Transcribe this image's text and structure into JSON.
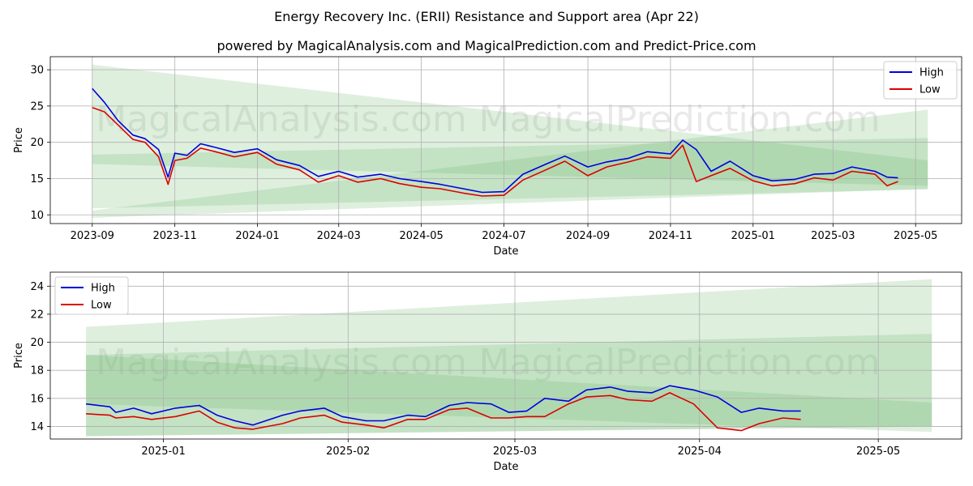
{
  "title": "Energy Recovery Inc. (ERII) Resistance and Support area (Apr 22)",
  "subtitle": "powered by MagicalAnalysis.com and MagicalPrediction.com and Predict-Price.com",
  "watermarks": [
    "MagicalAnalysis.com",
    "MagicalPrediction.com"
  ],
  "colors": {
    "high": "#0000dd",
    "low": "#dd0000",
    "band": "#6ab86a",
    "grid": "#b0b0b0"
  },
  "chart_data": [
    {
      "type": "line",
      "xlabel": "Date",
      "ylabel": "Price",
      "xlim": [
        "2023-08-01",
        "2025-06-04"
      ],
      "ylim": [
        8.8,
        31.8
      ],
      "grid": true,
      "legend": "top-right",
      "xticks": [
        {
          "date": "2023-09-01",
          "label": "2023-09"
        },
        {
          "date": "2023-11-01",
          "label": "2023-11"
        },
        {
          "date": "2024-01-01",
          "label": "2024-01"
        },
        {
          "date": "2024-03-01",
          "label": "2024-03"
        },
        {
          "date": "2024-05-01",
          "label": "2024-05"
        },
        {
          "date": "2024-07-01",
          "label": "2024-07"
        },
        {
          "date": "2024-09-01",
          "label": "2024-09"
        },
        {
          "date": "2024-11-01",
          "label": "2024-11"
        },
        {
          "date": "2025-01-01",
          "label": "2025-01"
        },
        {
          "date": "2025-03-01",
          "label": "2025-03"
        },
        {
          "date": "2025-05-01",
          "label": "2025-05"
        }
      ],
      "yticks": [
        10,
        15,
        20,
        25,
        30
      ],
      "bands": [
        {
          "x": [
            "2023-09-01",
            "2025-05-10"
          ],
          "top": [
            30.7,
            17.5
          ],
          "bottom": [
            17.0,
            14.0
          ]
        },
        {
          "x": [
            "2023-09-01",
            "2025-05-10"
          ],
          "top": [
            18.3,
            20.6
          ],
          "bottom": [
            10.9,
            13.5
          ]
        },
        {
          "x": [
            "2023-09-01",
            "2025-05-10"
          ],
          "top": [
            10.6,
            24.5
          ],
          "bottom": [
            9.6,
            13.6
          ]
        }
      ],
      "series": [
        {
          "name": "High",
          "x": [
            "2023-09-01",
            "2023-09-10",
            "2023-09-20",
            "2023-10-01",
            "2023-10-10",
            "2023-10-20",
            "2023-10-27",
            "2023-11-01",
            "2023-11-10",
            "2023-11-20",
            "2023-12-01",
            "2023-12-15",
            "2024-01-01",
            "2024-01-15",
            "2024-02-01",
            "2024-02-15",
            "2024-03-01",
            "2024-03-15",
            "2024-04-01",
            "2024-04-15",
            "2024-05-01",
            "2024-05-15",
            "2024-06-01",
            "2024-06-15",
            "2024-07-01",
            "2024-07-15",
            "2024-08-01",
            "2024-08-15",
            "2024-09-01",
            "2024-09-15",
            "2024-10-01",
            "2024-10-15",
            "2024-11-01",
            "2024-11-10",
            "2024-11-20",
            "2024-12-01",
            "2024-12-15",
            "2025-01-01",
            "2025-01-15",
            "2025-02-01",
            "2025-02-15",
            "2025-03-01",
            "2025-03-15",
            "2025-04-01",
            "2025-04-10",
            "2025-04-18"
          ],
          "values": [
            27.4,
            25.5,
            23.0,
            21.0,
            20.5,
            19.0,
            15.2,
            18.5,
            18.2,
            19.8,
            19.3,
            18.6,
            19.1,
            17.6,
            16.8,
            15.3,
            16.0,
            15.2,
            15.6,
            15.0,
            14.6,
            14.2,
            13.6,
            13.1,
            13.2,
            15.6,
            17.0,
            18.1,
            16.6,
            17.3,
            17.8,
            18.7,
            18.4,
            20.3,
            19.0,
            16.0,
            17.4,
            15.4,
            14.7,
            14.9,
            15.6,
            15.7,
            16.6,
            16.0,
            15.2,
            15.1
          ]
        },
        {
          "name": "Low",
          "x": [
            "2023-09-01",
            "2023-09-10",
            "2023-09-20",
            "2023-10-01",
            "2023-10-10",
            "2023-10-20",
            "2023-10-27",
            "2023-11-01",
            "2023-11-10",
            "2023-11-20",
            "2023-12-01",
            "2023-12-15",
            "2024-01-01",
            "2024-01-15",
            "2024-02-01",
            "2024-02-15",
            "2024-03-01",
            "2024-03-15",
            "2024-04-01",
            "2024-04-15",
            "2024-05-01",
            "2024-05-15",
            "2024-06-01",
            "2024-06-15",
            "2024-07-01",
            "2024-07-15",
            "2024-08-01",
            "2024-08-15",
            "2024-09-01",
            "2024-09-15",
            "2024-10-01",
            "2024-10-15",
            "2024-11-01",
            "2024-11-10",
            "2024-11-20",
            "2024-12-01",
            "2024-12-15",
            "2025-01-01",
            "2025-01-15",
            "2025-02-01",
            "2025-02-15",
            "2025-03-01",
            "2025-03-15",
            "2025-04-01",
            "2025-04-10",
            "2025-04-18"
          ],
          "values": [
            24.8,
            24.2,
            22.4,
            20.4,
            20.0,
            18.0,
            14.2,
            17.5,
            17.8,
            19.2,
            18.7,
            18.0,
            18.6,
            17.0,
            16.2,
            14.5,
            15.4,
            14.5,
            15.0,
            14.3,
            13.8,
            13.6,
            13.0,
            12.6,
            12.7,
            14.8,
            16.2,
            17.4,
            15.4,
            16.6,
            17.3,
            18.0,
            17.8,
            19.6,
            14.6,
            15.4,
            16.4,
            14.7,
            14.0,
            14.3,
            15.1,
            14.8,
            16.0,
            15.6,
            14.0,
            14.6
          ]
        }
      ]
    },
    {
      "type": "line",
      "xlabel": "Date",
      "ylabel": "Price",
      "xlim": [
        "2024-12-13",
        "2025-05-15"
      ],
      "ylim": [
        13.1,
        25.0
      ],
      "grid": true,
      "legend": "top-left",
      "xticks": [
        {
          "date": "2025-01-01",
          "label": "2025-01"
        },
        {
          "date": "2025-02-01",
          "label": "2025-02"
        },
        {
          "date": "2025-03-01",
          "label": "2025-03"
        },
        {
          "date": "2025-04-01",
          "label": "2025-04"
        },
        {
          "date": "2025-05-01",
          "label": "2025-05"
        }
      ],
      "yticks": [
        14,
        16,
        18,
        20,
        22,
        24
      ],
      "bands": [
        {
          "x": [
            "2024-12-19",
            "2025-05-10"
          ],
          "top": [
            21.1,
            24.5
          ],
          "bottom": [
            15.6,
            13.6
          ]
        },
        {
          "x": [
            "2024-12-19",
            "2025-05-10"
          ],
          "top": [
            19.1,
            20.6
          ],
          "bottom": [
            13.3,
            14.0
          ]
        },
        {
          "x": [
            "2024-12-19",
            "2025-05-10"
          ],
          "top": [
            19.1,
            15.7
          ],
          "bottom": [
            13.3,
            14.0
          ]
        }
      ],
      "series": [
        {
          "name": "High",
          "x": [
            "2024-12-19",
            "2024-12-23",
            "2024-12-24",
            "2024-12-27",
            "2024-12-30",
            "2025-01-03",
            "2025-01-07",
            "2025-01-10",
            "2025-01-13",
            "2025-01-16",
            "2025-01-21",
            "2025-01-24",
            "2025-01-28",
            "2025-01-31",
            "2025-02-04",
            "2025-02-07",
            "2025-02-11",
            "2025-02-14",
            "2025-02-18",
            "2025-02-21",
            "2025-02-25",
            "2025-02-28",
            "2025-03-03",
            "2025-03-06",
            "2025-03-10",
            "2025-03-13",
            "2025-03-17",
            "2025-03-20",
            "2025-03-24",
            "2025-03-27",
            "2025-03-31",
            "2025-04-04",
            "2025-04-08",
            "2025-04-11",
            "2025-04-15",
            "2025-04-18"
          ],
          "values": [
            15.6,
            15.4,
            15.0,
            15.3,
            14.9,
            15.3,
            15.5,
            14.8,
            14.4,
            14.1,
            14.8,
            15.1,
            15.3,
            14.7,
            14.4,
            14.4,
            14.8,
            14.7,
            15.5,
            15.7,
            15.6,
            15.0,
            15.1,
            16.0,
            15.8,
            16.6,
            16.8,
            16.5,
            16.4,
            16.9,
            16.6,
            16.1,
            15.0,
            15.3,
            15.1,
            15.1
          ]
        },
        {
          "name": "Low",
          "x": [
            "2024-12-19",
            "2024-12-23",
            "2024-12-24",
            "2024-12-27",
            "2024-12-30",
            "2025-01-03",
            "2025-01-07",
            "2025-01-10",
            "2025-01-13",
            "2025-01-16",
            "2025-01-21",
            "2025-01-24",
            "2025-01-28",
            "2025-01-31",
            "2025-02-04",
            "2025-02-07",
            "2025-02-11",
            "2025-02-14",
            "2025-02-18",
            "2025-02-21",
            "2025-02-25",
            "2025-02-28",
            "2025-03-03",
            "2025-03-06",
            "2025-03-10",
            "2025-03-13",
            "2025-03-17",
            "2025-03-20",
            "2025-03-24",
            "2025-03-27",
            "2025-03-31",
            "2025-04-04",
            "2025-04-08",
            "2025-04-11",
            "2025-04-15",
            "2025-04-18"
          ],
          "values": [
            14.9,
            14.8,
            14.6,
            14.7,
            14.5,
            14.7,
            15.1,
            14.3,
            13.9,
            13.8,
            14.2,
            14.6,
            14.8,
            14.3,
            14.1,
            13.9,
            14.5,
            14.5,
            15.2,
            15.3,
            14.6,
            14.6,
            14.7,
            14.7,
            15.6,
            16.1,
            16.2,
            15.9,
            15.8,
            16.4,
            15.6,
            13.9,
            13.7,
            14.2,
            14.6,
            14.5
          ]
        }
      ]
    }
  ]
}
